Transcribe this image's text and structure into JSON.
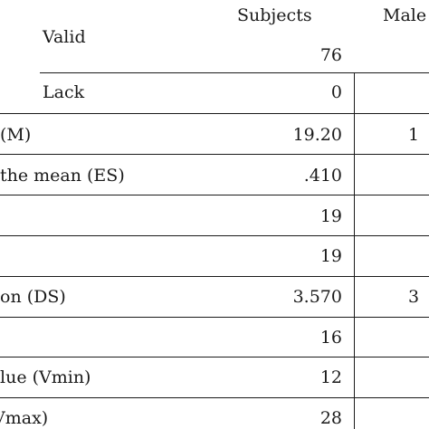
{
  "header": {
    "subjects": "Subjects",
    "males": "Male"
  },
  "group_label": "Valid",
  "rows": [
    {
      "label": "",
      "subjects": "76",
      "males": ""
    },
    {
      "label": "Lack",
      "subjects": "0",
      "males": ""
    },
    {
      "label": "(M)",
      "subjects": "19.20",
      "males": "1"
    },
    {
      "label": "the mean (ES)",
      "subjects": ".410",
      "males": ""
    },
    {
      "label": "",
      "subjects": "19",
      "males": ""
    },
    {
      "label": "",
      "subjects": "19",
      "males": ""
    },
    {
      "label": "on (DS)",
      "subjects": "3.570",
      "males": "3"
    },
    {
      "label": "",
      "subjects": "16",
      "males": ""
    },
    {
      "label": "lue (Vmin)",
      "subjects": "12",
      "males": ""
    },
    {
      "label": "Vmax)",
      "subjects": "28",
      "males": ""
    }
  ]
}
